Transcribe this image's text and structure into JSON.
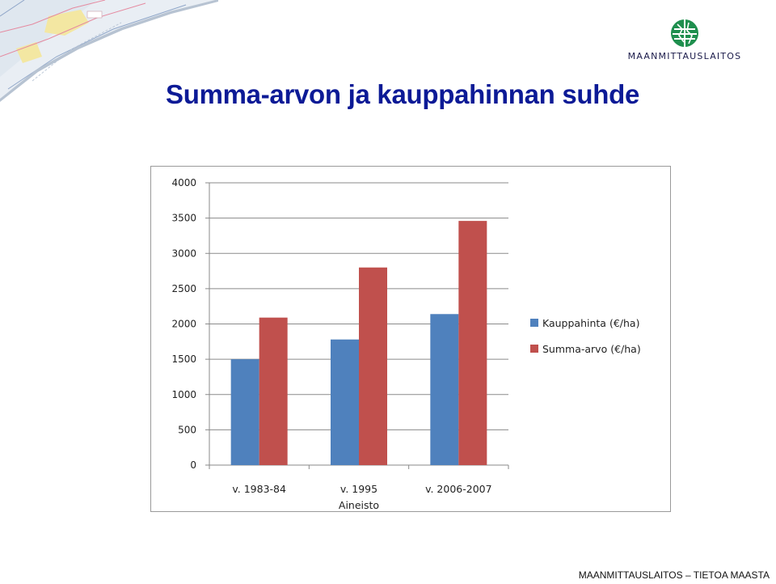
{
  "header": {
    "logo_text": "MAANMITTAUSLAITOS",
    "logo_icon": "maanmittauslaitos-globe-icon",
    "map_decoration": "topographic-map-corner",
    "title": "Summa-arvon ja kauppahinnan suhde"
  },
  "footer": {
    "text": "MAANMITTAUSLAITOS – TIETOA MAASTA"
  },
  "chart_data": {
    "type": "bar",
    "categories": [
      "v. 1983-84",
      "v. 1995",
      "v. 2006-2007"
    ],
    "series": [
      {
        "name": "Kauppahinta (€/ha)",
        "values": [
          1500,
          1780,
          2140
        ],
        "color": "#4f81bd"
      },
      {
        "name": "Summa-arvo (€/ha)",
        "values": [
          2090,
          2800,
          3460
        ],
        "color": "#c0504d"
      }
    ],
    "title": "",
    "xlabel": "Aineisto",
    "ylabel": "",
    "ylim": [
      0,
      4000
    ],
    "yticks": [
      0,
      500,
      1000,
      1500,
      2000,
      2500,
      3000,
      3500,
      4000
    ],
    "grid": true,
    "legend": "right"
  }
}
